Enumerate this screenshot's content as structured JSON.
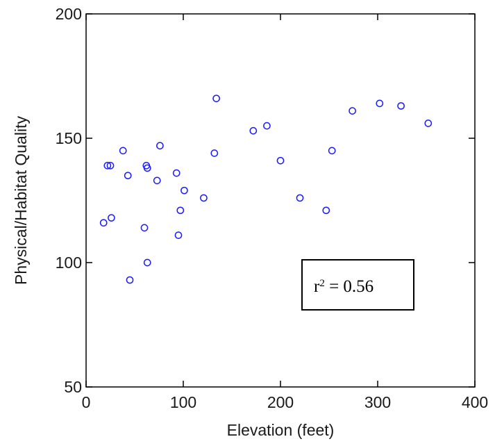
{
  "chart_data": {
    "type": "scatter",
    "title": "",
    "xlabel": "Elevation (feet)",
    "ylabel": "Physical/Habitat Quality",
    "xlim": [
      0,
      400
    ],
    "ylim": [
      50,
      200
    ],
    "xticks": [
      0,
      100,
      200,
      300,
      400
    ],
    "yticks": [
      50,
      100,
      150,
      200
    ],
    "xtick_labels": [
      "0",
      "100",
      "200",
      "300",
      "400"
    ],
    "ytick_labels": [
      "50",
      "100",
      "150",
      "200"
    ],
    "grid": false,
    "marker": "open-circle",
    "marker_color": "#1a1aff",
    "annotation": {
      "base": "r",
      "exponent": "2",
      "rest": " = 0.56",
      "position": "lower-right"
    },
    "points": [
      {
        "x": 18,
        "y": 116
      },
      {
        "x": 22,
        "y": 139
      },
      {
        "x": 25,
        "y": 139
      },
      {
        "x": 26,
        "y": 118
      },
      {
        "x": 38,
        "y": 145
      },
      {
        "x": 43,
        "y": 135
      },
      {
        "x": 45,
        "y": 93
      },
      {
        "x": 60,
        "y": 114
      },
      {
        "x": 62,
        "y": 139
      },
      {
        "x": 63,
        "y": 138
      },
      {
        "x": 63,
        "y": 100
      },
      {
        "x": 73,
        "y": 133
      },
      {
        "x": 76,
        "y": 147
      },
      {
        "x": 93,
        "y": 136
      },
      {
        "x": 95,
        "y": 111
      },
      {
        "x": 97,
        "y": 121
      },
      {
        "x": 101,
        "y": 129
      },
      {
        "x": 121,
        "y": 126
      },
      {
        "x": 132,
        "y": 144
      },
      {
        "x": 134,
        "y": 166
      },
      {
        "x": 172,
        "y": 153
      },
      {
        "x": 186,
        "y": 155
      },
      {
        "x": 200,
        "y": 141
      },
      {
        "x": 220,
        "y": 126
      },
      {
        "x": 247,
        "y": 121
      },
      {
        "x": 253,
        "y": 145
      },
      {
        "x": 274,
        "y": 161
      },
      {
        "x": 302,
        "y": 164
      },
      {
        "x": 324,
        "y": 163
      },
      {
        "x": 352,
        "y": 156
      }
    ]
  }
}
